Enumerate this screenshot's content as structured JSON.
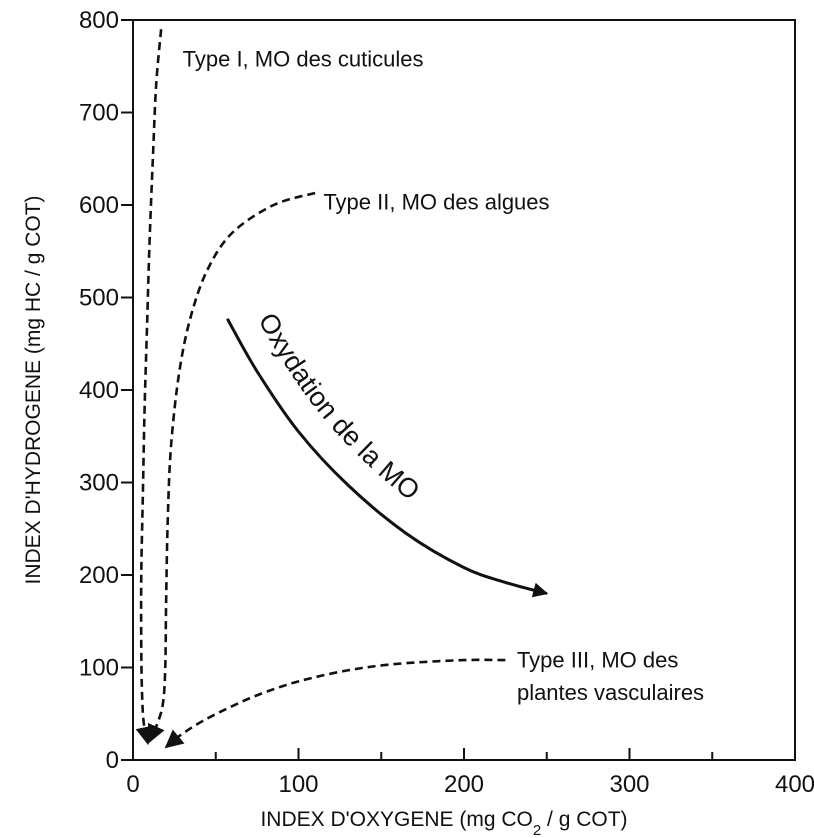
{
  "chart_data": {
    "type": "line",
    "xlabel": "INDEX D'OXYGENE (mg CO",
    "xlabel_sub": "2",
    "xlabel_rest": " / g COT)",
    "ylabel": "INDEX D'HYDROGENE (mg HC / g COT)",
    "xlim": [
      0,
      400
    ],
    "ylim": [
      0,
      800
    ],
    "x_ticks": [
      0,
      100,
      200,
      300,
      400
    ],
    "x_minor_ticks": [
      50,
      150,
      250,
      350
    ],
    "y_ticks": [
      0,
      100,
      200,
      300,
      400,
      500,
      600,
      700,
      800
    ],
    "grid": false,
    "line_style": "dashed",
    "line_color": "#111111",
    "series": [
      {
        "name": "Type I, MO des cuticules",
        "x": [
          17,
          14,
          12,
          10,
          8.5,
          7,
          6,
          5,
          5,
          5.5,
          6.5,
          9
        ],
        "y": [
          790,
          730,
          650,
          560,
          470,
          380,
          290,
          200,
          120,
          70,
          40,
          18
        ],
        "arrow_at_end": true
      },
      {
        "name": "Type II, MO des algues",
        "x": [
          110,
          85,
          60,
          45,
          35,
          28,
          23,
          21,
          20,
          19.5,
          18,
          14,
          10
        ],
        "y": [
          613,
          600,
          570,
          530,
          480,
          420,
          340,
          260,
          170,
          100,
          60,
          36,
          20
        ],
        "arrow_at_end": true
      },
      {
        "name": "Type III, MO des plantes vasculaires",
        "x": [
          225,
          200,
          160,
          130,
          100,
          75,
          55,
          40,
          28,
          20
        ],
        "y": [
          108,
          108,
          104,
          97,
          85,
          70,
          54,
          40,
          26,
          14
        ],
        "arrow_at_end": true
      }
    ],
    "annotations": [
      {
        "text": "Type I, MO des cuticules",
        "x": 30,
        "y": 750
      },
      {
        "text": "Type II, MO des algues",
        "x": 115,
        "y": 595
      },
      {
        "text": "Type III, MO des",
        "x": 232,
        "y": 100
      },
      {
        "text": "plantes vasculaires",
        "x": 232,
        "y": 65
      }
    ],
    "trend_arrow": {
      "label": "Oxydation de la MO",
      "x": [
        57,
        75,
        100,
        130,
        165,
        200,
        225,
        250
      ],
      "y": [
        477,
        420,
        355,
        297,
        245,
        208,
        192,
        180
      ]
    }
  }
}
